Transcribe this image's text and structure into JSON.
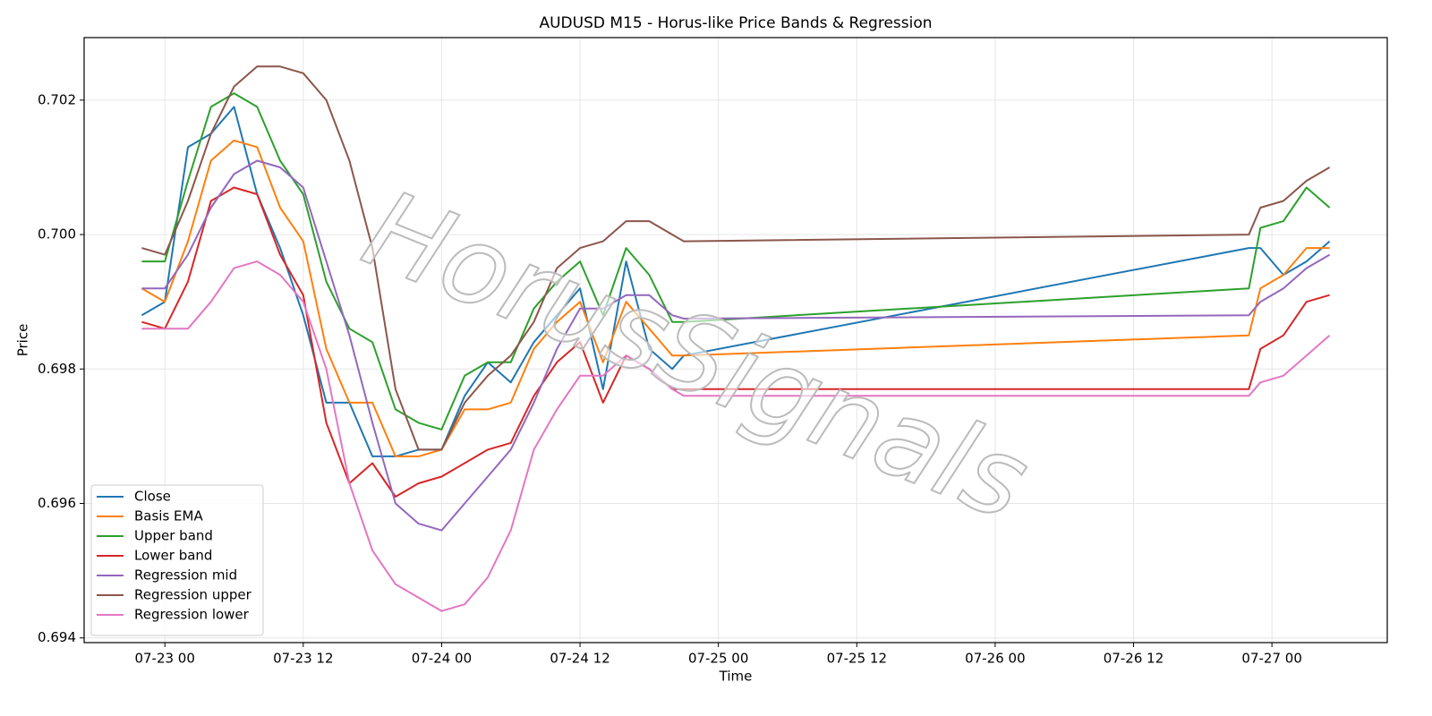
{
  "chart_data": {
    "type": "line",
    "title": "AUDUSD M15 - Horus-like Price Bands & Regression",
    "x_label": "Time",
    "y_label": "Price",
    "watermark": "HorusSignals",
    "x": [
      "07-22 22",
      "07-23 00",
      "07-23 02",
      "07-23 04",
      "07-23 06",
      "07-23 08",
      "07-23 10",
      "07-23 12",
      "07-23 14",
      "07-23 16",
      "07-23 18",
      "07-23 20",
      "07-23 22",
      "07-24 00",
      "07-24 02",
      "07-24 04",
      "07-24 06",
      "07-24 08",
      "07-24 10",
      "07-24 12",
      "07-24 14",
      "07-24 16",
      "07-24 18",
      "07-24 20",
      "07-24 21",
      "07-26 22",
      "07-26 23",
      "07-27 01",
      "07-27 03",
      "07-27 05"
    ],
    "xlim": [
      "07-22 17",
      "07-27 10"
    ],
    "xticks": [
      "07-23 00",
      "07-23 12",
      "07-24 00",
      "07-24 12",
      "07-25 00",
      "07-25 12",
      "07-26 00",
      "07-26 12",
      "07-27 00"
    ],
    "ylim": [
      0.69393,
      0.70293
    ],
    "yticks": [
      0.694,
      0.696,
      0.698,
      {
        "value": 0.7,
        "label": "0.700"
      },
      0.702
    ],
    "grid": true,
    "legend": "lower left",
    "series": [
      {
        "name": "Close",
        "color": "#1f77b4",
        "values": [
          0.6988,
          0.699,
          0.7013,
          0.7015,
          0.7019,
          0.7006,
          0.6998,
          0.6988,
          0.6975,
          0.6975,
          0.6967,
          0.6967,
          0.6968,
          0.6968,
          0.6976,
          0.6981,
          0.6978,
          0.6984,
          0.6988,
          0.6992,
          0.6977,
          0.6996,
          0.6983,
          0.698,
          0.6982,
          0.6998,
          0.6998,
          0.6994,
          0.6996,
          0.6999
        ]
      },
      {
        "name": "Basis EMA",
        "color": "#ff7f0e",
        "values": [
          0.6992,
          0.699,
          0.6999,
          0.7011,
          0.7014,
          0.7013,
          0.7004,
          0.6999,
          0.6983,
          0.6975,
          0.6975,
          0.6967,
          0.6967,
          0.6968,
          0.6974,
          0.6974,
          0.6975,
          0.6983,
          0.6987,
          0.699,
          0.6981,
          0.699,
          0.6986,
          0.6982,
          0.6982,
          0.6985,
          0.6992,
          0.6994,
          0.6998,
          0.6998
        ]
      },
      {
        "name": "Upper band",
        "color": "#2ca02c",
        "values": [
          0.6996,
          0.6996,
          0.7008,
          0.7019,
          0.7021,
          0.7019,
          0.7011,
          0.7006,
          0.6993,
          0.6986,
          0.6984,
          0.6974,
          0.6972,
          0.6971,
          0.6979,
          0.6981,
          0.6981,
          0.6989,
          0.6993,
          0.6996,
          0.6988,
          0.6998,
          0.6994,
          0.6987,
          0.6987,
          0.6992,
          0.7001,
          0.7002,
          0.7007,
          0.7004
        ]
      },
      {
        "name": "Lower band",
        "color": "#d62728",
        "values": [
          0.6987,
          0.6986,
          0.6993,
          0.7005,
          0.7007,
          0.7006,
          0.6997,
          0.6991,
          0.6972,
          0.6963,
          0.6966,
          0.6961,
          0.6963,
          0.6964,
          0.6966,
          0.6968,
          0.6969,
          0.6976,
          0.6981,
          0.6984,
          0.6975,
          0.6982,
          0.698,
          0.6977,
          0.6977,
          0.6977,
          0.6983,
          0.6985,
          0.699,
          0.6991
        ]
      },
      {
        "name": "Regression mid",
        "color": "#9467bd",
        "values": [
          0.6992,
          0.6992,
          0.6997,
          0.7004,
          0.7009,
          0.7011,
          0.701,
          0.7007,
          0.6996,
          0.6985,
          0.6972,
          0.696,
          0.6957,
          0.6956,
          0.696,
          0.6964,
          0.6968,
          0.6975,
          0.6983,
          0.6989,
          0.6989,
          0.6991,
          0.6991,
          0.6988,
          0.69875,
          0.6988,
          0.699,
          0.6992,
          0.6995,
          0.6997
        ]
      },
      {
        "name": "Regression upper",
        "color": "#8c564b",
        "values": [
          0.6998,
          0.6997,
          0.7005,
          0.7015,
          0.7022,
          0.7025,
          0.7025,
          0.7024,
          0.702,
          0.7011,
          0.6998,
          0.6977,
          0.6968,
          0.6968,
          0.6975,
          0.6979,
          0.6982,
          0.6987,
          0.6995,
          0.6998,
          0.6999,
          0.7002,
          0.7002,
          0.7,
          0.6999,
          0.7,
          0.7004,
          0.7005,
          0.7008,
          0.701
        ]
      },
      {
        "name": "Regression lower",
        "color": "#e377c2",
        "values": [
          0.6986,
          0.6986,
          0.6986,
          0.699,
          0.6995,
          0.6996,
          0.6994,
          0.699,
          0.698,
          0.6963,
          0.6953,
          0.6948,
          0.6946,
          0.6944,
          0.6945,
          0.6949,
          0.6956,
          0.6968,
          0.6974,
          0.6979,
          0.6979,
          0.6982,
          0.698,
          0.6977,
          0.6976,
          0.6976,
          0.6978,
          0.6979,
          0.6982,
          0.6985
        ]
      }
    ]
  }
}
